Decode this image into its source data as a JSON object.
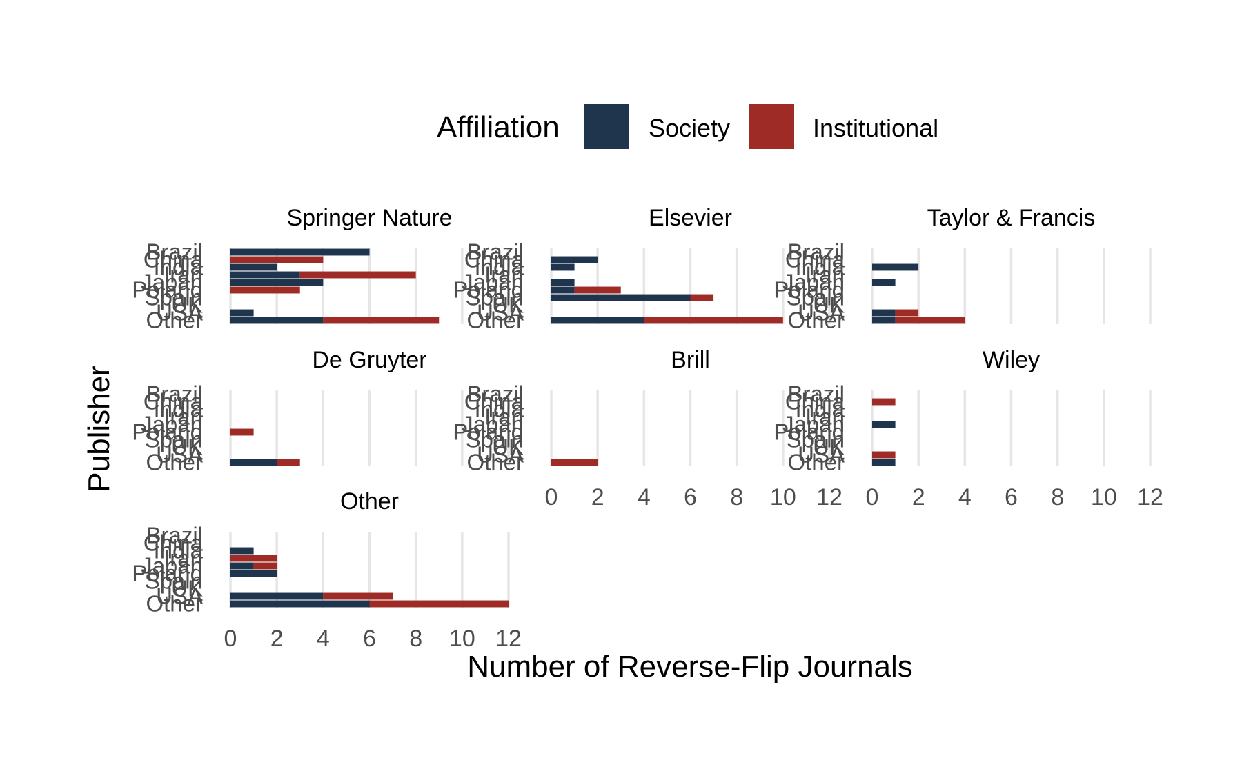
{
  "chart_data": {
    "type": "bar",
    "orientation": "horizontal",
    "stacked": true,
    "xlabel": "Number of Reverse-Flip Journals",
    "ylabel": "Publisher",
    "xlim": [
      0,
      12
    ],
    "x_ticks": [
      0,
      2,
      4,
      6,
      8,
      10,
      12
    ],
    "grid": "vertical major lines",
    "legend": {
      "title": "Affiliation",
      "position": "top",
      "entries": [
        {
          "name": "Society",
          "color": "#1f344d"
        },
        {
          "name": "Institutional",
          "color": "#9e2b25"
        }
      ]
    },
    "categories": [
      "Brazil",
      "China",
      "India",
      "Iran",
      "Japan",
      "Poland",
      "Spain",
      "UK",
      "USA",
      "Other"
    ],
    "panels": [
      {
        "title": "Springer Nature",
        "series": [
          {
            "name": "Society",
            "values": [
              6,
              0,
              2,
              3,
              4,
              0,
              0,
              0,
              1,
              4
            ]
          },
          {
            "name": "Institutional",
            "values": [
              0,
              4,
              0,
              5,
              0,
              3,
              0,
              0,
              0,
              5
            ]
          }
        ]
      },
      {
        "title": "Elsevier",
        "series": [
          {
            "name": "Society",
            "values": [
              0,
              2,
              1,
              0,
              1,
              1,
              6,
              0,
              0,
              4
            ]
          },
          {
            "name": "Institutional",
            "values": [
              0,
              0,
              0,
              0,
              0,
              2,
              1,
              0,
              0,
              6
            ]
          }
        ]
      },
      {
        "title": "Taylor & Francis",
        "series": [
          {
            "name": "Society",
            "values": [
              0,
              0,
              2,
              0,
              1,
              0,
              0,
              0,
              1,
              1
            ]
          },
          {
            "name": "Institutional",
            "values": [
              0,
              0,
              0,
              0,
              0,
              0,
              0,
              0,
              1,
              3
            ]
          }
        ]
      },
      {
        "title": "De Gruyter",
        "series": [
          {
            "name": "Society",
            "values": [
              0,
              0,
              0,
              0,
              0,
              0,
              0,
              0,
              0,
              2
            ]
          },
          {
            "name": "Institutional",
            "values": [
              0,
              0,
              0,
              0,
              0,
              1,
              0,
              0,
              0,
              1
            ]
          }
        ]
      },
      {
        "title": "Brill",
        "series": [
          {
            "name": "Society",
            "values": [
              0,
              0,
              0,
              0,
              0,
              0,
              0,
              0,
              0,
              0
            ]
          },
          {
            "name": "Institutional",
            "values": [
              0,
              0,
              0,
              0,
              0,
              0,
              0,
              0,
              0,
              2
            ]
          }
        ]
      },
      {
        "title": "Wiley",
        "series": [
          {
            "name": "Society",
            "values": [
              0,
              0,
              0,
              0,
              1,
              0,
              0,
              0,
              0,
              1
            ]
          },
          {
            "name": "Institutional",
            "values": [
              0,
              1,
              0,
              0,
              0,
              0,
              0,
              0,
              1,
              0
            ]
          }
        ]
      },
      {
        "title": "Other",
        "series": [
          {
            "name": "Society",
            "values": [
              0,
              0,
              1,
              0,
              1,
              2,
              0,
              0,
              4,
              6
            ]
          },
          {
            "name": "Institutional",
            "values": [
              0,
              0,
              0,
              2,
              1,
              0,
              0,
              0,
              3,
              6
            ]
          }
        ]
      }
    ]
  }
}
